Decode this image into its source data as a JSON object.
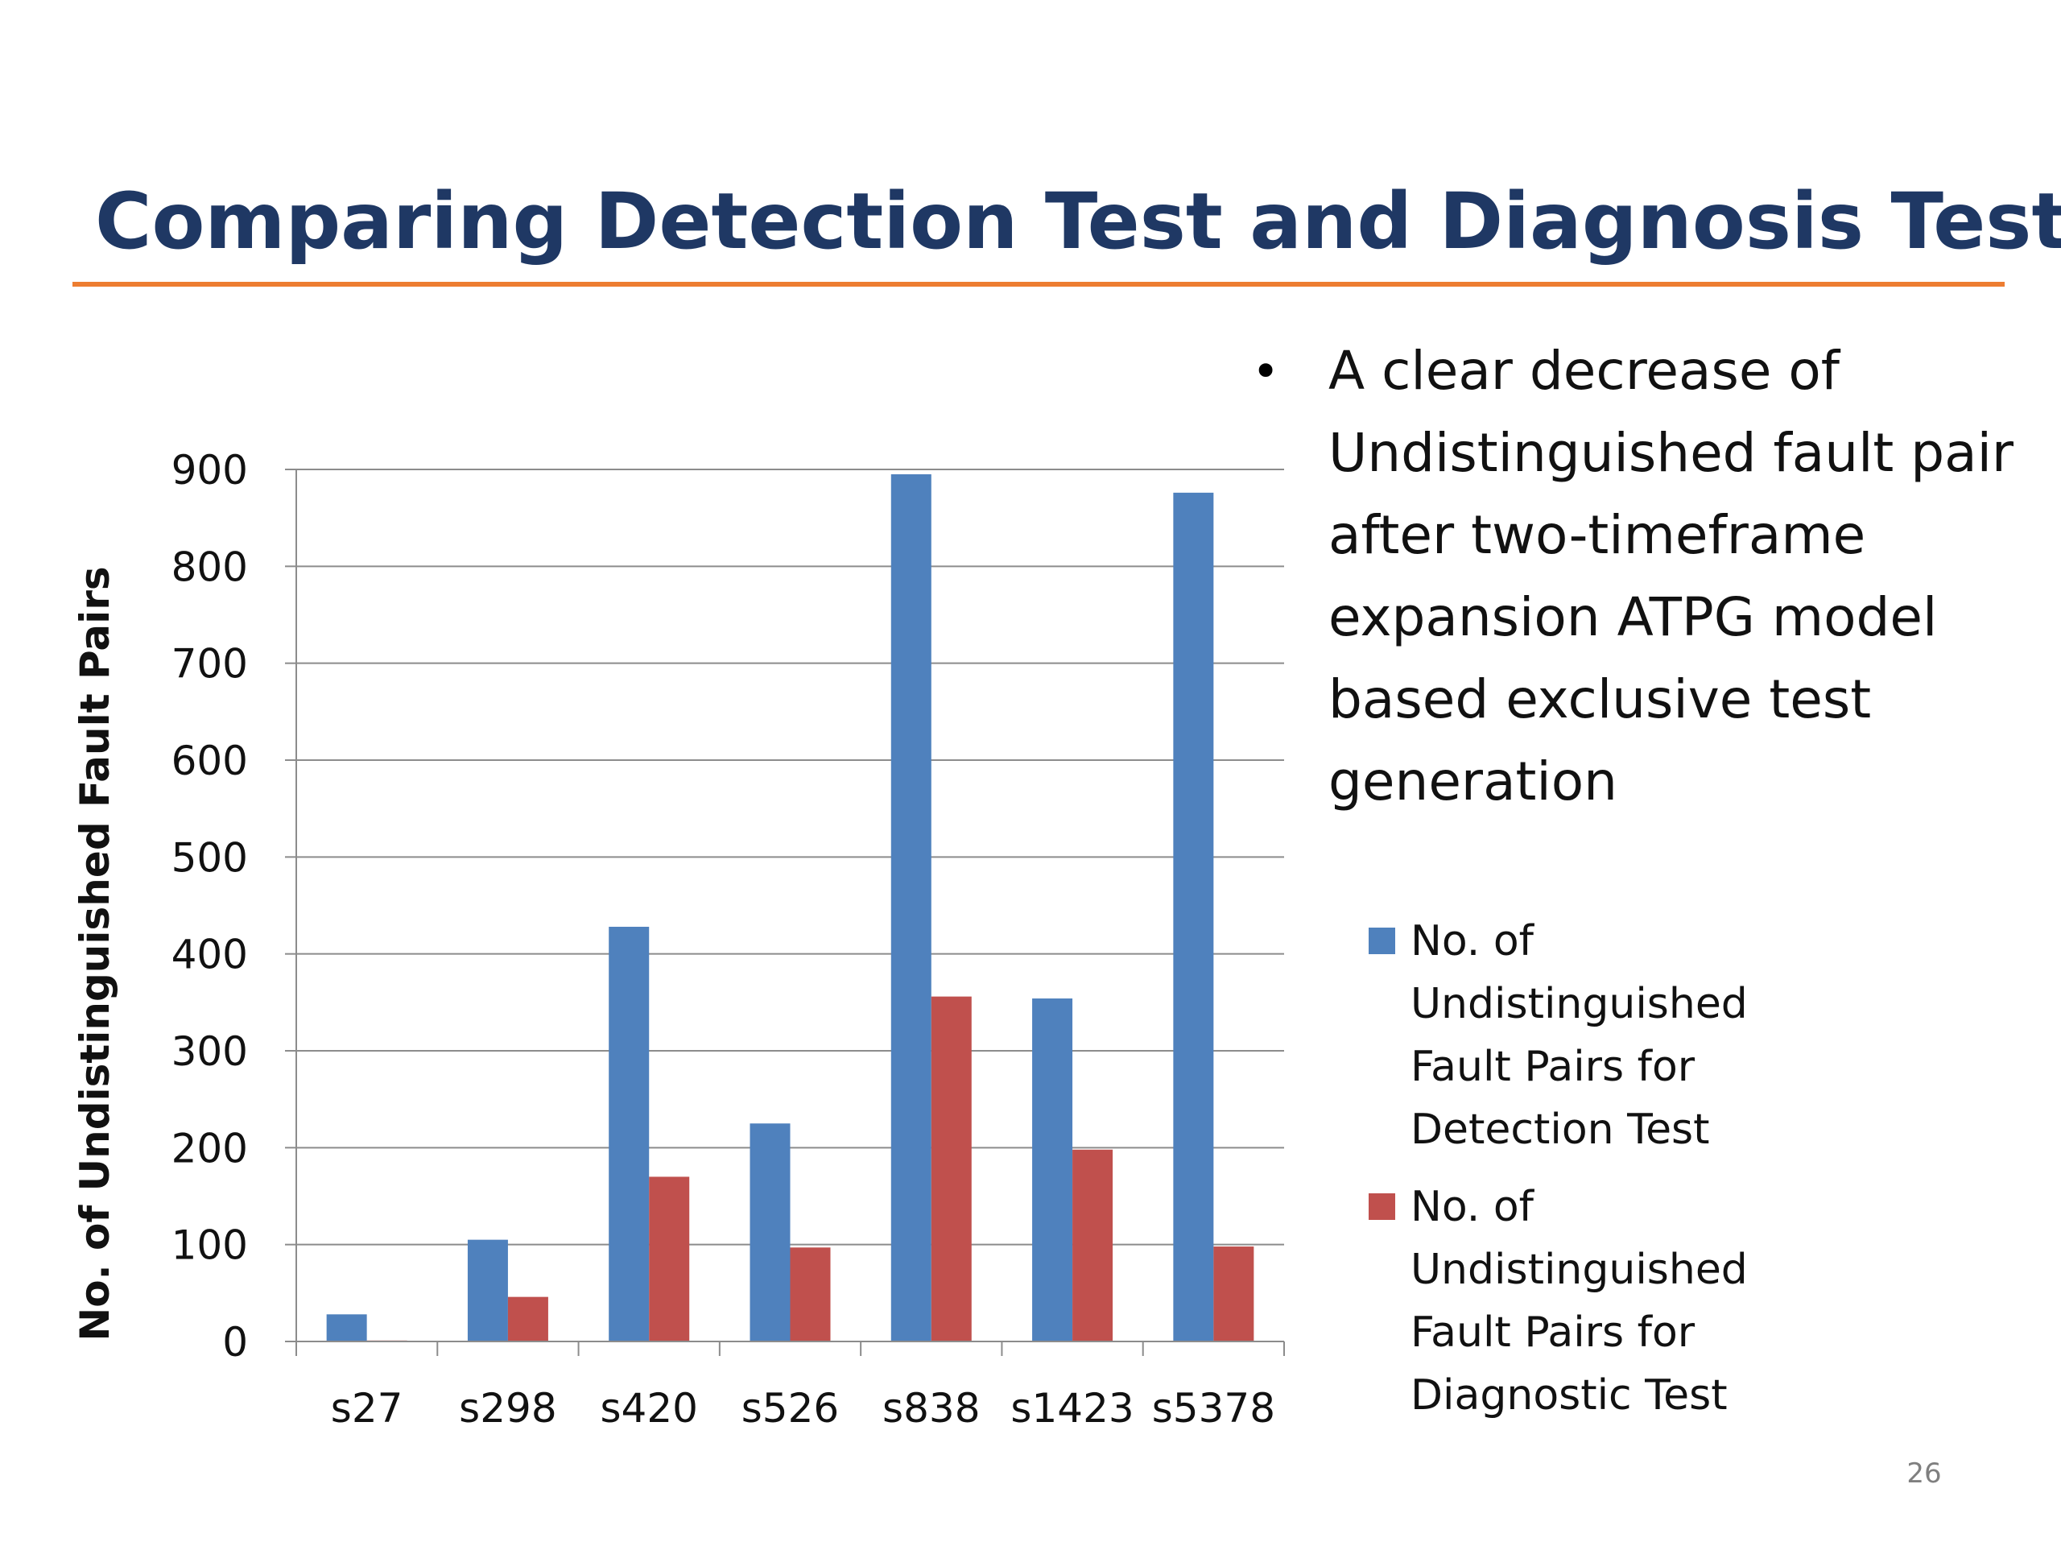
{
  "slide": {
    "title": "Comparing Detection Test and Diagnosis Test",
    "page_number": "26",
    "bullet": "A clear decrease of Undistinguished fault pair after two-timeframe expansion ATPG model based exclusive test generation"
  },
  "colors": {
    "title": "#1f3864",
    "rule": "#ed7d31",
    "detection": "#4f81bd",
    "diagnostic": "#c0504d",
    "grid": "#8c8c8c"
  },
  "chart_data": {
    "type": "bar",
    "categories": [
      "s27",
      "s298",
      "s420",
      "s526",
      "s838",
      "s1423",
      "s5378"
    ],
    "series": [
      {
        "name": "No. of Undistinguished Fault Pairs for Detection Test",
        "values": [
          28,
          105,
          428,
          225,
          895,
          354,
          876
        ]
      },
      {
        "name": "No. of Undistinguished Fault Pairs for Diagnostic Test",
        "values": [
          1,
          46,
          170,
          97,
          356,
          198,
          98
        ]
      }
    ],
    "ylabel": "No. of Undistinguished Fault Pairs",
    "xlabel": "",
    "ylim": [
      0,
      900
    ],
    "yticks": [
      "0",
      "100",
      "200",
      "300",
      "400",
      "500",
      "600",
      "700",
      "800",
      "900"
    ],
    "grid": true,
    "legend_position": "right"
  }
}
